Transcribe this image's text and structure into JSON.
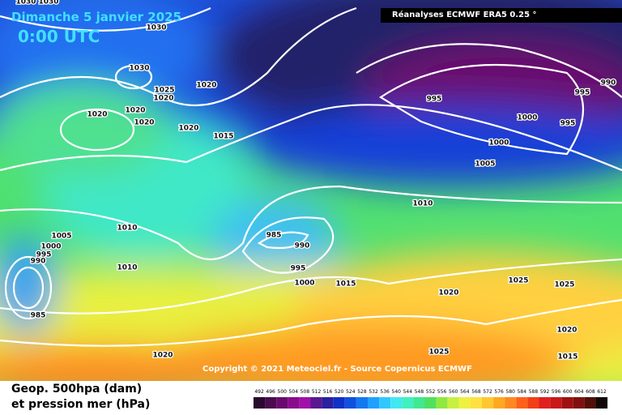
{
  "header": {
    "date": "Dimanche 5 janvier 2025",
    "time": "0:00 UTC",
    "source": "Réanalyses ECMWF ERA5 0.25 °"
  },
  "copyright": "Copyright © 2021 Meteociel.fr - Source Copernicus ECMWF",
  "legend": {
    "title_line1": "Geop. 500hpa (dam)",
    "title_line2": "et pression mer (hPa)",
    "colorbar": {
      "values": [
        492,
        496,
        500,
        504,
        508,
        512,
        516,
        520,
        524,
        528,
        532,
        536,
        540,
        544,
        548,
        552,
        556,
        560,
        564,
        568,
        572,
        576,
        580,
        584,
        588,
        592,
        596,
        600,
        604,
        608,
        612
      ],
      "colors": [
        "#2a0a2e",
        "#4b0b4f",
        "#6a0a6e",
        "#8a0a8c",
        "#a010a8",
        "#5a1890",
        "#2a20a0",
        "#1030c8",
        "#1050e0",
        "#1478f0",
        "#20a0ff",
        "#30c8ff",
        "#40e8f0",
        "#40f0c0",
        "#40e890",
        "#50e060",
        "#90e840",
        "#c8f040",
        "#f0f040",
        "#ffe040",
        "#ffc830",
        "#ffa820",
        "#ff8820",
        "#ff6018",
        "#f04018",
        "#e02020",
        "#c81818",
        "#a01010",
        "#801010",
        "#501008",
        "#100808"
      ]
    }
  },
  "isobar_labels": [
    "1030",
    "1030",
    "1030",
    "1030",
    "1025",
    "1020",
    "1020",
    "1020",
    "1020",
    "1020",
    "1020",
    "1015",
    "995",
    "990",
    "995",
    "1000",
    "995",
    "1000",
    "1005",
    "1010",
    "985",
    "990",
    "995",
    "1000",
    "1015",
    "1020",
    "1025",
    "1025",
    "1005",
    "1000",
    "995",
    "990",
    "1010",
    "1010",
    "985",
    "1020",
    "1025",
    "1020",
    "1015"
  ]
}
